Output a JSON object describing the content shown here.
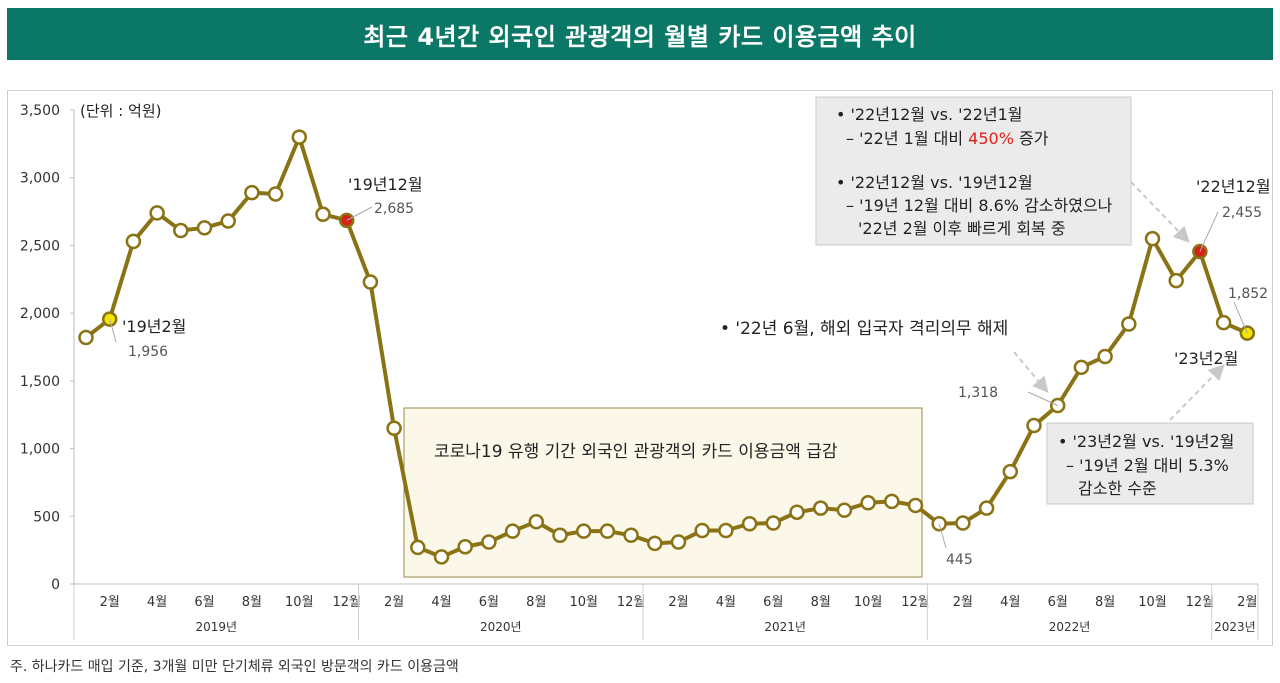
{
  "title": "최근 4년간 외국인 관광객의 월별 카드 이용금액 추이",
  "footnote": "주. 하나카드 매입 기준, 3개월 미만 단기체류 외국인 방문객의 카드 이용금액",
  "colors": {
    "title_bg": "#0b7767",
    "line": "#8a7314",
    "marker_fill": "#ffffff",
    "highlight_yellow": "#f2e600",
    "highlight_red": "#d8201a",
    "callout_bg": "#ebebeb",
    "covid_box_bg": "#fbf8ea",
    "covid_box_border": "#9a8a4a",
    "accent_red": "#e0201c"
  },
  "chart_data": {
    "type": "line",
    "unit_label": "(단위 : 억원)",
    "ylim": [
      0,
      3500
    ],
    "yticks": [
      0,
      500,
      1000,
      1500,
      2000,
      2500,
      3000,
      3500
    ],
    "ytick_labels": [
      "0",
      "500",
      "1,000",
      "1,500",
      "2,000",
      "2,500",
      "3,000",
      "3,500"
    ],
    "grid": false,
    "legend": "none",
    "x_month_labels": [
      "2월",
      "4월",
      "6월",
      "8월",
      "10월",
      "12월",
      "2월",
      "4월",
      "6월",
      "8월",
      "10월",
      "12월",
      "2월",
      "4월",
      "6월",
      "8월",
      "10월",
      "12월",
      "2월",
      "4월",
      "6월",
      "8월",
      "10월",
      "12월",
      "2월"
    ],
    "x_year_labels": [
      "2019년",
      "2020년",
      "2021년",
      "2022년",
      "2023년"
    ],
    "series": [
      {
        "months": [
          "2019-01",
          "2019-02",
          "2019-03",
          "2019-04",
          "2019-05",
          "2019-06",
          "2019-07",
          "2019-08",
          "2019-09",
          "2019-10",
          "2019-11",
          "2019-12",
          "2020-01",
          "2020-02",
          "2020-03",
          "2020-04",
          "2020-05",
          "2020-06",
          "2020-07",
          "2020-08",
          "2020-09",
          "2020-10",
          "2020-11",
          "2020-12",
          "2021-01",
          "2021-02",
          "2021-03",
          "2021-04",
          "2021-05",
          "2021-06",
          "2021-07",
          "2021-08",
          "2021-09",
          "2021-10",
          "2021-11",
          "2021-12",
          "2022-01",
          "2022-02",
          "2022-03",
          "2022-04",
          "2022-05",
          "2022-06",
          "2022-07",
          "2022-08",
          "2022-09",
          "2022-10",
          "2022-11",
          "2022-12",
          "2023-01",
          "2023-02"
        ],
        "values": [
          1820,
          1956,
          2530,
          2740,
          2610,
          2630,
          2680,
          2890,
          2880,
          3300,
          2730,
          2685,
          2230,
          1150,
          270,
          200,
          275,
          310,
          390,
          460,
          360,
          390,
          390,
          360,
          300,
          310,
          395,
          395,
          445,
          450,
          530,
          560,
          545,
          600,
          610,
          580,
          445,
          450,
          560,
          830,
          1170,
          1318,
          1600,
          1680,
          1920,
          2550,
          2240,
          2455,
          1930,
          1852
        ]
      }
    ],
    "annotations": [
      {
        "label": "'19년2월",
        "value_text": "1,956",
        "month": "2019-02",
        "style": "yellow"
      },
      {
        "label": "'19년12월",
        "value_text": "2,685",
        "month": "2019-12",
        "style": "red"
      },
      {
        "label": "'22년12월",
        "value_text": "2,455",
        "month": "2022-12",
        "style": "red"
      },
      {
        "label": "'23년2월",
        "value_text": "1,852",
        "month": "2023-02",
        "style": "yellow"
      },
      {
        "label": "",
        "value_text": "1,318",
        "month": "2022-06",
        "style": "none"
      },
      {
        "label": "",
        "value_text": "445",
        "month": "2022-01",
        "style": "none"
      }
    ],
    "covid_box_text": "코로나19 유행 기간 외국인 관광객의 카드 이용금액 급감",
    "reopen_note": "• '22년 6월, 해외 입국자 격리의무 해제",
    "callout_top": {
      "line1": "• '22년12월 vs. '22년1월",
      "line2_prefix": "– '22년 1월 대비 ",
      "line2_highlight": "450%",
      "line2_suffix": " 증가",
      "line3": "• '22년12월 vs. '19년12월",
      "line4": "– '19년 12월 대비 8.6% 감소하였으나",
      "line5": "'22년 2월 이후 빠르게 회복 중"
    },
    "callout_bottom": {
      "line1": "• '23년2월 vs. '19년2월",
      "line2": "– '19년 2월 대비 5.3%",
      "line3": "감소한 수준"
    }
  }
}
